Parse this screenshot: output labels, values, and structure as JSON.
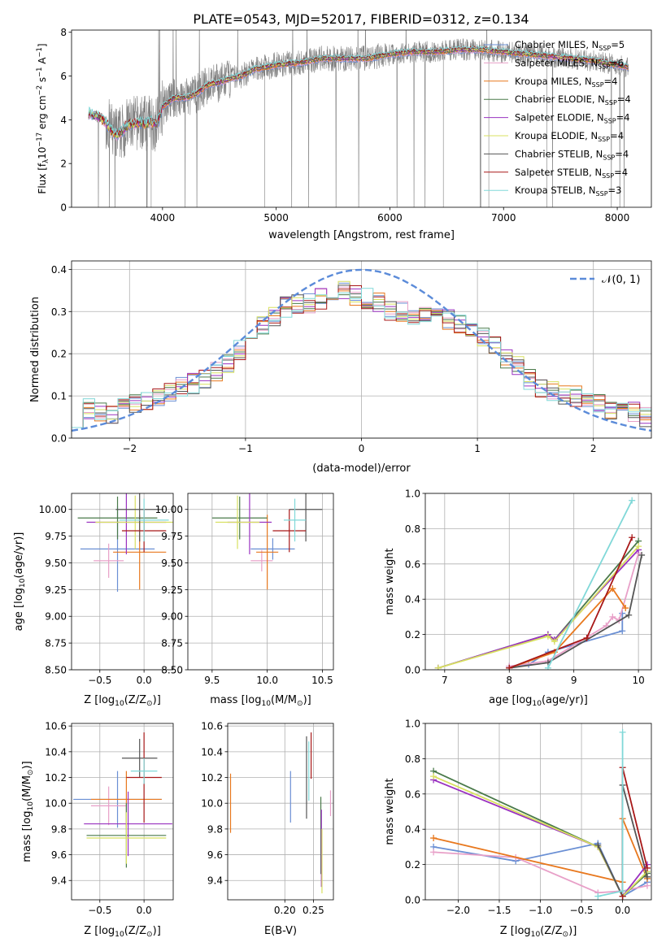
{
  "figure_title": "PLATE=0543, MJD=52017, FIBERID=0312, z=0.134",
  "colors": {
    "Chabrier MILES": "#6a8fd4",
    "Salpeter MILES": "#e8a0c8",
    "Kroupa MILES": "#e8781e",
    "Chabrier ELODIE": "#4a7a4a",
    "Salpeter ELODIE": "#9a32c0",
    "Kroupa ELODIE": "#d8e060",
    "Chabrier STELIB": "#555555",
    "Salpeter STELIB": "#a81818",
    "Kroupa STELIB": "#80d8d8",
    "data": "#808080",
    "gaussian": "#5b8bd9"
  },
  "chart_data": [
    {
      "type": "line",
      "id": "spectrum",
      "title": "PLATE=0543, MJD=52017, FIBERID=0312, z=0.134",
      "xlabel": "wavelength [Angstrom, rest frame]",
      "ylabel_parts": [
        "Flux [f",
        "λ",
        "10",
        "−17",
        " erg cm",
        "−2",
        " s",
        "−1",
        " A",
        "−1",
        "]"
      ],
      "xlim": [
        3200,
        8300
      ],
      "ylim": [
        0,
        8.1
      ],
      "xticks": [
        4000,
        5000,
        6000,
        7000,
        8000
      ],
      "yticks": [
        0,
        2,
        4,
        6,
        8
      ],
      "grid": false,
      "legend_placement": "right",
      "legend": [
        {
          "label": "Chabrier MILES, N",
          "sub": "SSP",
          "suffix": "=5",
          "series": "Chabrier MILES"
        },
        {
          "label": "Salpeter MILES, N",
          "sub": "SSP",
          "suffix": "=6",
          "series": "Salpeter MILES"
        },
        {
          "label": "Kroupa MILES, N",
          "sub": "SSP",
          "suffix": "=4",
          "series": "Kroupa MILES"
        },
        {
          "label": "Chabrier ELODIE, N",
          "sub": "SSP",
          "suffix": "=4",
          "series": "Chabrier ELODIE"
        },
        {
          "label": "Salpeter ELODIE, N",
          "sub": "SSP",
          "suffix": "=4",
          "series": "Salpeter ELODIE"
        },
        {
          "label": "Kroupa ELODIE, N",
          "sub": "SSP",
          "suffix": "=4",
          "series": "Kroupa ELODIE"
        },
        {
          "label": "Chabrier STELIB, N",
          "sub": "SSP",
          "suffix": "=4",
          "series": "Chabrier STELIB"
        },
        {
          "label": "Salpeter STELIB, N",
          "sub": "SSP",
          "suffix": "=4",
          "series": "Salpeter STELIB"
        },
        {
          "label": "Kroupa STELIB, N",
          "sub": "SSP",
          "suffix": "=3",
          "series": "Kroupa STELIB"
        }
      ],
      "continuum": {
        "x": [
          3350,
          3400,
          3450,
          3500,
          3550,
          3600,
          3650,
          3700,
          3750,
          3800,
          3850,
          3900,
          3950,
          4000,
          4100,
          4200,
          4300,
          4400,
          4500,
          4600,
          4700,
          4800,
          4900,
          5000,
          5200,
          5400,
          5600,
          5800,
          6000,
          6200,
          6400,
          6600,
          6800,
          7000,
          7200,
          7400,
          7600,
          7800,
          8000,
          8100
        ],
        "y": [
          4.3,
          4.2,
          4.1,
          3.9,
          3.5,
          3.3,
          3.5,
          3.8,
          3.8,
          3.9,
          3.8,
          3.9,
          3.8,
          4.6,
          5.0,
          5.0,
          5.2,
          5.6,
          5.7,
          5.9,
          6.0,
          6.3,
          6.4,
          6.5,
          6.6,
          6.8,
          6.8,
          6.8,
          7.0,
          7.1,
          7.1,
          7.2,
          7.2,
          7.1,
          7.0,
          6.9,
          6.8,
          6.7,
          6.5,
          6.4
        ]
      }
    },
    {
      "type": "step",
      "id": "residuals",
      "xlabel": "(data-model)/error",
      "ylabel": "Normed distribution",
      "xlim": [
        -2.5,
        2.5
      ],
      "ylim": [
        0,
        0.42
      ],
      "xticks": [
        -2,
        -1,
        0,
        1,
        2
      ],
      "xtick_labels": [
        "−2",
        "−1",
        "0",
        "1",
        "2"
      ],
      "yticks": [
        0.0,
        0.1,
        0.2,
        0.3,
        0.4
      ],
      "grid": true,
      "legend_placement": "top-right",
      "legend": [
        {
          "label": "𝒩(0, 1)"
        }
      ],
      "bins": [
        -2.5,
        -2.4,
        -2.3,
        -2.2,
        -2.1,
        -2.0,
        -1.9,
        -1.8,
        -1.7,
        -1.6,
        -1.5,
        -1.4,
        -1.3,
        -1.2,
        -1.1,
        -1.0,
        -0.9,
        -0.8,
        -0.7,
        -0.6,
        -0.5,
        -0.4,
        -0.3,
        -0.2,
        -0.1,
        0.0,
        0.1,
        0.2,
        0.3,
        0.4,
        0.5,
        0.6,
        0.7,
        0.8,
        0.9,
        1.0,
        1.1,
        1.2,
        1.3,
        1.4,
        1.5,
        1.6,
        1.7,
        1.8,
        1.9,
        2.0,
        2.1,
        2.2,
        2.3,
        2.4,
        2.5
      ],
      "base": [
        0.05,
        0.07,
        0.06,
        0.06,
        0.07,
        0.08,
        0.09,
        0.1,
        0.11,
        0.12,
        0.13,
        0.14,
        0.16,
        0.18,
        0.21,
        0.24,
        0.27,
        0.29,
        0.31,
        0.32,
        0.32,
        0.33,
        0.34,
        0.35,
        0.34,
        0.33,
        0.32,
        0.3,
        0.3,
        0.29,
        0.3,
        0.3,
        0.28,
        0.27,
        0.25,
        0.24,
        0.22,
        0.19,
        0.17,
        0.14,
        0.12,
        0.11,
        0.1,
        0.1,
        0.09,
        0.08,
        0.07,
        0.07,
        0.06,
        0.05
      ],
      "gaussian": {
        "mean": 0,
        "sigma": 1
      }
    },
    {
      "type": "errorbar",
      "id": "age-vs-z",
      "xlabel_parts": [
        "Z [log",
        "10",
        "(Z/Z",
        "⊙",
        ")]"
      ],
      "ylabel_parts": [
        "age  [log",
        "10",
        "(age/yr)]"
      ],
      "xlim": [
        -0.82,
        0.33
      ],
      "ylim": [
        8.5,
        10.15
      ],
      "xticks": [
        -0.5,
        0.0
      ],
      "xtick_labels": [
        "−0.5",
        "0.0"
      ],
      "yticks": [
        8.5,
        8.75,
        9.0,
        9.25,
        9.5,
        9.75,
        10.0
      ],
      "ytick_labels": [
        "8.50",
        "8.75",
        "9.00",
        "9.25",
        "9.50",
        "9.75",
        "10.00"
      ],
      "grid": true,
      "points": [
        {
          "series": "Chabrier MILES",
          "x": -0.3,
          "xerr": 0.42,
          "y": 9.63,
          "yerr": 0.4
        },
        {
          "series": "Salpeter MILES",
          "x": -0.4,
          "xerr": 0.17,
          "y": 9.52,
          "yerr": 0.16
        },
        {
          "series": "Kroupa MILES",
          "x": -0.05,
          "xerr": 0.3,
          "y": 9.6,
          "yerr": 0.35
        },
        {
          "series": "Chabrier ELODIE",
          "x": -0.3,
          "xerr": 0.45,
          "y": 9.92,
          "yerr": 0.2
        },
        {
          "series": "Salpeter ELODIE",
          "x": -0.2,
          "xerr": 0.45,
          "y": 9.88,
          "yerr": 0.3
        },
        {
          "series": "Kroupa ELODIE",
          "x": -0.1,
          "xerr": 0.45,
          "y": 9.88,
          "yerr": 0.25
        },
        {
          "series": "Chabrier STELIB",
          "x": -0.05,
          "xerr": 0.27,
          "y": 10.0,
          "yerr": 0.3
        },
        {
          "series": "Salpeter STELIB",
          "x": 0.0,
          "xerr": 0.25,
          "y": 9.8,
          "yerr": 0.2
        },
        {
          "series": "Kroupa STELIB",
          "x": 0.0,
          "xerr": 0.28,
          "y": 9.9,
          "yerr": 0.2
        }
      ]
    },
    {
      "type": "errorbar",
      "id": "age-vs-mass",
      "xlabel_parts": [
        "mass [log",
        "10",
        "(M/M",
        "⊙",
        ")]"
      ],
      "xlim": [
        9.28,
        10.6
      ],
      "ylim": [
        8.5,
        10.15
      ],
      "xticks": [
        9.5,
        10.0,
        10.5
      ],
      "xtick_labels": [
        "9.5",
        "10.0",
        "10.5"
      ],
      "yticks": [
        8.5,
        8.75,
        9.0,
        9.25,
        9.5,
        9.75,
        10.0
      ],
      "ytick_labels": [
        "8.50",
        "8.75",
        "9.00",
        "9.25",
        "9.50",
        "9.75",
        "10.00"
      ],
      "grid": true,
      "points": [
        {
          "series": "Chabrier MILES",
          "x": 10.05,
          "xerr": 0.2,
          "y": 9.63,
          "yerr": 0.1
        },
        {
          "series": "Salpeter MILES",
          "x": 9.95,
          "xerr": 0.1,
          "y": 9.52,
          "yerr": 0.1
        },
        {
          "series": "Kroupa MILES",
          "x": 10.0,
          "xerr": 0.1,
          "y": 9.6,
          "yerr": 0.35
        },
        {
          "series": "Chabrier ELODIE",
          "x": 9.75,
          "xerr": 0.25,
          "y": 9.92,
          "yerr": 0.2
        },
        {
          "series": "Salpeter ELODIE",
          "x": 9.84,
          "xerr": 0.2,
          "y": 9.88,
          "yerr": 0.3
        },
        {
          "series": "Kroupa ELODIE",
          "x": 9.73,
          "xerr": 0.2,
          "y": 9.88,
          "yerr": 0.25
        },
        {
          "series": "Chabrier STELIB",
          "x": 10.35,
          "xerr": 0.15,
          "y": 10.0,
          "yerr": 0.3
        },
        {
          "series": "Salpeter STELIB",
          "x": 10.2,
          "xerr": 0.15,
          "y": 9.8,
          "yerr": 0.2
        },
        {
          "series": "Kroupa STELIB",
          "x": 10.25,
          "xerr": 0.1,
          "y": 9.9,
          "yerr": 0.2
        }
      ]
    },
    {
      "type": "line",
      "id": "mass-weight-vs-age",
      "xlabel_parts": [
        "age  [log",
        "10",
        "(age/yr)]"
      ],
      "ylabel": "mass weight",
      "xlim": [
        6.7,
        10.2
      ],
      "ylim": [
        0,
        1.0
      ],
      "xticks": [
        7,
        8,
        9,
        10
      ],
      "yticks": [
        0.0,
        0.2,
        0.4,
        0.6,
        0.8,
        1.0
      ],
      "grid": true,
      "series": [
        {
          "name": "Chabrier MILES",
          "x": [
            8.0,
            8.3,
            8.6,
            9.75,
            9.75
          ],
          "y": [
            0.02,
            0.03,
            0.1,
            0.22,
            0.32
          ]
        },
        {
          "name": "Salpeter MILES",
          "x": [
            8.0,
            8.6,
            9.5,
            9.6,
            9.7,
            10.0
          ],
          "y": [
            0.02,
            0.05,
            0.25,
            0.3,
            0.28,
            0.66
          ]
        },
        {
          "name": "Kroupa MILES",
          "x": [
            8.0,
            8.7,
            9.6,
            9.8
          ],
          "y": [
            0.01,
            0.1,
            0.46,
            0.35
          ]
        },
        {
          "name": "Chabrier ELODIE",
          "x": [
            6.9,
            8.6,
            8.7,
            10.0
          ],
          "y": [
            0.01,
            0.2,
            0.17,
            0.73
          ]
        },
        {
          "name": "Salpeter ELODIE",
          "x": [
            6.9,
            8.6,
            8.7,
            10.0
          ],
          "y": [
            0.01,
            0.2,
            0.17,
            0.68
          ]
        },
        {
          "name": "Kroupa ELODIE",
          "x": [
            6.9,
            8.6,
            8.7,
            10.0
          ],
          "y": [
            0.01,
            0.19,
            0.16,
            0.7
          ]
        },
        {
          "name": "Chabrier STELIB",
          "x": [
            8.0,
            8.6,
            9.85,
            10.05
          ],
          "y": [
            0.01,
            0.04,
            0.31,
            0.65
          ]
        },
        {
          "name": "Salpeter STELIB",
          "x": [
            8.0,
            9.2,
            9.9
          ],
          "y": [
            0.01,
            0.18,
            0.75
          ]
        },
        {
          "name": "Kroupa STELIB",
          "x": [
            8.6,
            9.9
          ],
          "y": [
            0.01,
            0.96
          ]
        }
      ]
    },
    {
      "type": "errorbar",
      "id": "mass-vs-z",
      "xlabel_parts": [
        "Z [log",
        "10",
        "(Z/Z",
        "⊙",
        ")]"
      ],
      "ylabel_parts": [
        "mass [log",
        "10",
        "(M/M",
        "⊙",
        ")]"
      ],
      "xlim": [
        -0.82,
        0.33
      ],
      "ylim": [
        9.25,
        10.62
      ],
      "xticks": [
        -0.5,
        0.0
      ],
      "xtick_labels": [
        "−0.5",
        "0.0"
      ],
      "yticks": [
        9.4,
        9.6,
        9.8,
        10.0,
        10.2,
        10.4,
        10.6
      ],
      "ytick_labels": [
        "9.4",
        "9.6",
        "9.8",
        "10.0",
        "10.2",
        "10.4",
        "10.6"
      ],
      "grid": true,
      "points": [
        {
          "series": "Chabrier MILES",
          "x": -0.3,
          "xerr": 0.5,
          "y": 10.03,
          "yerr": 0.22
        },
        {
          "series": "Salpeter MILES",
          "x": -0.4,
          "xerr": 0.2,
          "y": 9.98,
          "yerr": 0.15
        },
        {
          "series": "Kroupa MILES",
          "x": -0.2,
          "xerr": 0.4,
          "y": 10.03,
          "yerr": 0.22
        },
        {
          "series": "Chabrier ELODIE",
          "x": -0.2,
          "xerr": 0.45,
          "y": 9.75,
          "yerr": 0.25
        },
        {
          "series": "Salpeter ELODIE",
          "x": -0.18,
          "xerr": 0.5,
          "y": 9.84,
          "yerr": 0.25
        },
        {
          "series": "Kroupa ELODIE",
          "x": -0.2,
          "xerr": 0.45,
          "y": 9.73,
          "yerr": 0.2
        },
        {
          "series": "Chabrier STELIB",
          "x": -0.05,
          "xerr": 0.2,
          "y": 10.35,
          "yerr": 0.15
        },
        {
          "series": "Salpeter STELIB",
          "x": 0.0,
          "xerr": 0.2,
          "y": 10.2,
          "yerr": 0.35
        },
        {
          "series": "Kroupa STELIB",
          "x": 0.0,
          "xerr": 0.15,
          "y": 10.25,
          "yerr": 0.1
        }
      ]
    },
    {
      "type": "errorbar",
      "id": "mass-vs-ebv",
      "xlabel": "E(B-V)",
      "xlim": [
        0.1,
        0.285
      ],
      "ylim": [
        9.25,
        10.62
      ],
      "xticks": [
        0.2,
        0.25
      ],
      "xtick_labels": [
        "0.20",
        "0.25"
      ],
      "yticks": [
        9.4,
        9.6,
        9.8,
        10.0,
        10.2,
        10.4,
        10.6
      ],
      "ytick_labels": [
        "9.4",
        "9.6",
        "9.8",
        "10.0",
        "10.2",
        "10.4",
        "10.6"
      ],
      "grid": true,
      "points": [
        {
          "series": "Kroupa MILES",
          "x": 0.105,
          "y": 10.0,
          "yerr": 0.23
        },
        {
          "series": "Chabrier MILES",
          "x": 0.21,
          "y": 10.05,
          "yerr": 0.2
        },
        {
          "series": "Chabrier STELIB",
          "x": 0.238,
          "y": 10.2,
          "yerr": 0.32
        },
        {
          "series": "Kroupa STELIB",
          "x": 0.242,
          "y": 10.25,
          "yerr": 0.23
        },
        {
          "series": "Salpeter STELIB",
          "x": 0.246,
          "y": 10.37,
          "yerr": 0.18
        },
        {
          "series": "Chabrier ELODIE",
          "x": 0.263,
          "y": 9.75,
          "yerr": 0.3
        },
        {
          "series": "Salpeter ELODIE",
          "x": 0.264,
          "y": 9.65,
          "yerr": 0.3
        },
        {
          "series": "Kroupa ELODIE",
          "x": 0.265,
          "y": 9.55,
          "yerr": 0.25
        },
        {
          "series": "Salpeter MILES",
          "x": 0.28,
          "y": 10.0,
          "yerr": 0.1
        }
      ]
    },
    {
      "type": "line",
      "id": "mass-weight-vs-z",
      "xlabel_parts": [
        "Z [log",
        "10",
        "(Z/Z",
        "⊙",
        ")]"
      ],
      "ylabel": "mass weight",
      "xlim": [
        -2.4,
        0.35
      ],
      "ylim": [
        0,
        1.0
      ],
      "xticks": [
        -2.0,
        -1.5,
        -1.0,
        -0.5,
        0.0
      ],
      "xtick_labels": [
        "−2.0",
        "−1.5",
        "−1.0",
        "−0.5",
        "0.0"
      ],
      "yticks": [
        0.0,
        0.2,
        0.4,
        0.6,
        0.8,
        1.0
      ],
      "grid": true,
      "series": [
        {
          "name": "Chabrier MILES",
          "x": [
            -2.3,
            -1.3,
            -0.3,
            0.0,
            0.3
          ],
          "y": [
            0.3,
            0.22,
            0.32,
            0.02,
            0.1
          ]
        },
        {
          "name": "Salpeter MILES",
          "x": [
            -2.3,
            -1.3,
            -0.3,
            0.0,
            0.3
          ],
          "y": [
            0.27,
            0.24,
            0.04,
            0.05,
            0.08
          ]
        },
        {
          "name": "Kroupa MILES",
          "x": [
            -2.3,
            0.0,
            0.0,
            0.3
          ],
          "y": [
            0.35,
            0.1,
            0.46,
            0.12
          ]
        },
        {
          "name": "Chabrier ELODIE",
          "x": [
            -2.3,
            -0.3,
            0.0,
            0.3
          ],
          "y": [
            0.73,
            0.3,
            0.02,
            0.15
          ]
        },
        {
          "name": "Salpeter ELODIE",
          "x": [
            -2.3,
            -0.3,
            0.0,
            0.3
          ],
          "y": [
            0.68,
            0.3,
            0.02,
            0.2
          ]
        },
        {
          "name": "Kroupa ELODIE",
          "x": [
            -2.3,
            -0.3,
            0.0,
            0.3
          ],
          "y": [
            0.7,
            0.3,
            0.02,
            0.16
          ]
        },
        {
          "name": "Chabrier STELIB",
          "x": [
            -0.3,
            0.0,
            0.0,
            0.3
          ],
          "y": [
            0.31,
            0.02,
            0.65,
            0.13
          ]
        },
        {
          "name": "Salpeter STELIB",
          "x": [
            0.0,
            0.0,
            0.3
          ],
          "y": [
            0.02,
            0.75,
            0.18
          ]
        },
        {
          "name": "Kroupa STELIB",
          "x": [
            -0.3,
            0.0,
            0.0
          ],
          "y": [
            0.02,
            0.05,
            0.95
          ]
        }
      ]
    }
  ]
}
